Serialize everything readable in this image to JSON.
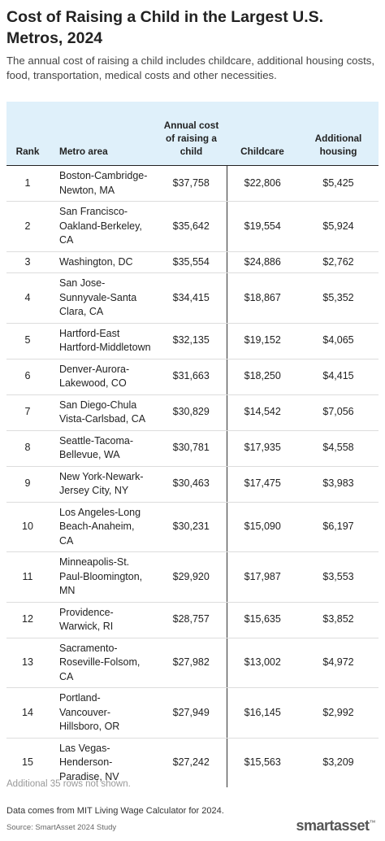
{
  "header": {
    "title": "Cost of Raising a Child in the Largest U.S. Metros, 2024",
    "subtitle": "The annual cost of raising a child includes childcare, additional housing costs, food, transportation, medical costs and other necessities."
  },
  "table": {
    "columns": [
      "Rank",
      "Metro area",
      "Annual cost of raising a child",
      "Childcare",
      "Additional housing"
    ],
    "rows": [
      [
        "1",
        "Boston-Cambridge-Newton, MA",
        "$37,758",
        "$22,806",
        "$5,425"
      ],
      [
        "2",
        "San Francisco-Oakland-Berkeley, CA",
        "$35,642",
        "$19,554",
        "$5,924"
      ],
      [
        "3",
        "Washington, DC",
        "$35,554",
        "$24,886",
        "$2,762"
      ],
      [
        "4",
        "San Jose-Sunnyvale-Santa Clara, CA",
        "$34,415",
        "$18,867",
        "$5,352"
      ],
      [
        "5",
        "Hartford-East Hartford-Middletown",
        "$32,135",
        "$19,152",
        "$4,065"
      ],
      [
        "6",
        "Denver-Aurora-Lakewood, CO",
        "$31,663",
        "$18,250",
        "$4,415"
      ],
      [
        "7",
        "San Diego-Chula Vista-Carlsbad, CA",
        "$30,829",
        "$14,542",
        "$7,056"
      ],
      [
        "8",
        "Seattle-Tacoma-Bellevue, WA",
        "$30,781",
        "$17,935",
        "$4,558"
      ],
      [
        "9",
        "New York-Newark-Jersey City, NY",
        "$30,463",
        "$17,475",
        "$3,983"
      ],
      [
        "10",
        "Los Angeles-Long Beach-Anaheim, CA",
        "$30,231",
        "$15,090",
        "$6,197"
      ],
      [
        "11",
        "Minneapolis-St. Paul-Bloomington, MN",
        "$29,920",
        "$17,987",
        "$3,553"
      ],
      [
        "12",
        "Providence-Warwick, RI",
        "$28,757",
        "$15,635",
        "$3,852"
      ],
      [
        "13",
        "Sacramento-Roseville-Folsom, CA",
        "$27,982",
        "$13,002",
        "$4,972"
      ],
      [
        "14",
        "Portland-Vancouver-Hillsboro, OR",
        "$27,949",
        "$16,145",
        "$2,992"
      ],
      [
        "15",
        "Las Vegas-Henderson-Paradise, NV",
        "$27,242",
        "$15,563",
        "$3,209"
      ]
    ],
    "footnote": "Additional 35 rows not shown."
  },
  "footer": {
    "note": "Data comes from MIT Living Wage Calculator for 2024.",
    "source": "Source: SmartAsset 2024 Study",
    "logo": "smartasset",
    "logo_mark": "™"
  }
}
